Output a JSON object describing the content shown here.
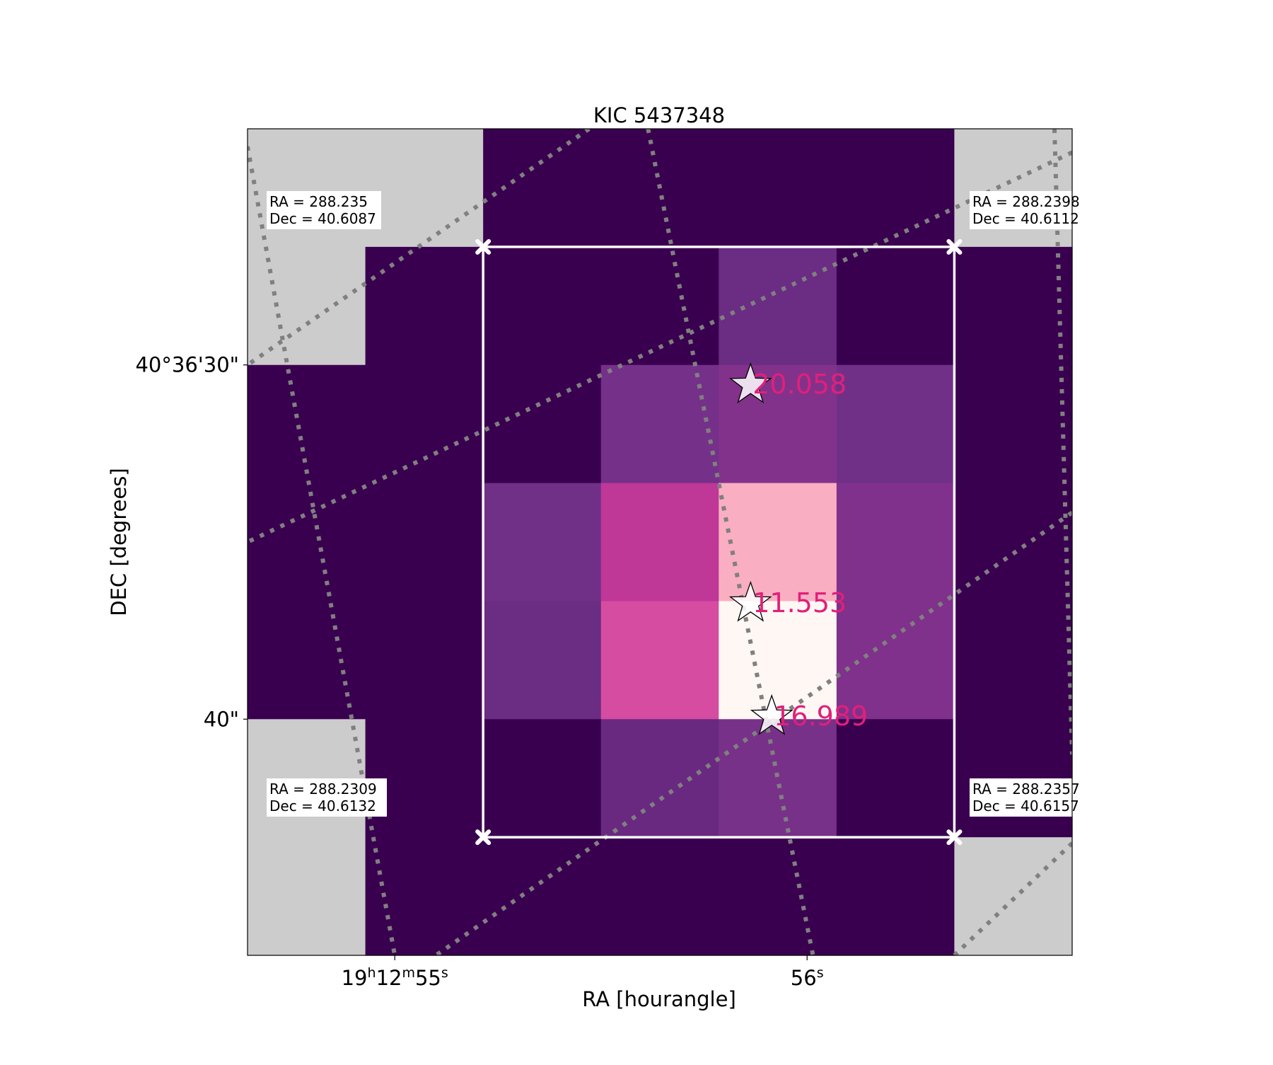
{
  "chart_data": {
    "type": "heatmap",
    "title": "KIC 5437348",
    "xlabel": "RA [hourangle]",
    "ylabel": "DEC [degrees]",
    "x_ticks": [
      {
        "h": "19",
        "m": "12",
        "s": "55",
        "col": 1.25
      },
      {
        "s": "56",
        "col": 4.75
      }
    ],
    "y_ticks": [
      {
        "label": "40°36'30\"",
        "row": 2.0
      },
      {
        "label": "40\"",
        "row": 5.0
      }
    ],
    "grid": true,
    "colormap": "RdPu_r",
    "colors": {
      "masked": "#cccccc",
      "aperture": "#ffffff",
      "grid_lines": "#808080",
      "magnitude_labels": "#e0207a",
      "star_fill": "#ffffff",
      "star_edge": "#000000"
    },
    "pixel_grid": {
      "columns": 7,
      "rows": 7,
      "values": [
        [
          null,
          null,
          0.0,
          0.0,
          0.0,
          0.0,
          null
        ],
        [
          null,
          0.0,
          0.0,
          0.0,
          0.2,
          0.0,
          0.0
        ],
        [
          0.0,
          0.0,
          0.0,
          0.24,
          0.29,
          0.22,
          0.0
        ],
        [
          0.0,
          0.0,
          0.22,
          0.52,
          0.9,
          0.28,
          0.0
        ],
        [
          0.0,
          0.0,
          0.2,
          0.62,
          1.0,
          0.28,
          0.0
        ],
        [
          null,
          0.0,
          0.0,
          0.19,
          0.25,
          0.0,
          0.0
        ],
        [
          null,
          0.0,
          0.0,
          0.0,
          0.0,
          0.0,
          null
        ]
      ]
    },
    "aperture": {
      "col_start": 2,
      "col_end": 6,
      "row_start": 1,
      "row_end": 6
    },
    "stars": [
      {
        "magnitude": "20.058",
        "col": 4.27,
        "row": 2.17
      },
      {
        "magnitude": "11.553",
        "col": 4.27,
        "row": 4.02
      },
      {
        "magnitude": "16.989",
        "col": 4.45,
        "row": 4.98
      }
    ],
    "corner_annotations": [
      {
        "position": "top-left",
        "ra": "RA = 288.235",
        "dec": "Dec = 40.6087"
      },
      {
        "position": "top-right",
        "ra": "RA = 288.2398",
        "dec": "Dec = 40.6112"
      },
      {
        "position": "bottom-left",
        "ra": "RA = 288.2309",
        "dec": "Dec = 40.6132"
      },
      {
        "position": "bottom-right",
        "ra": "RA = 288.2357",
        "dec": "Dec = 40.6157"
      }
    ]
  }
}
